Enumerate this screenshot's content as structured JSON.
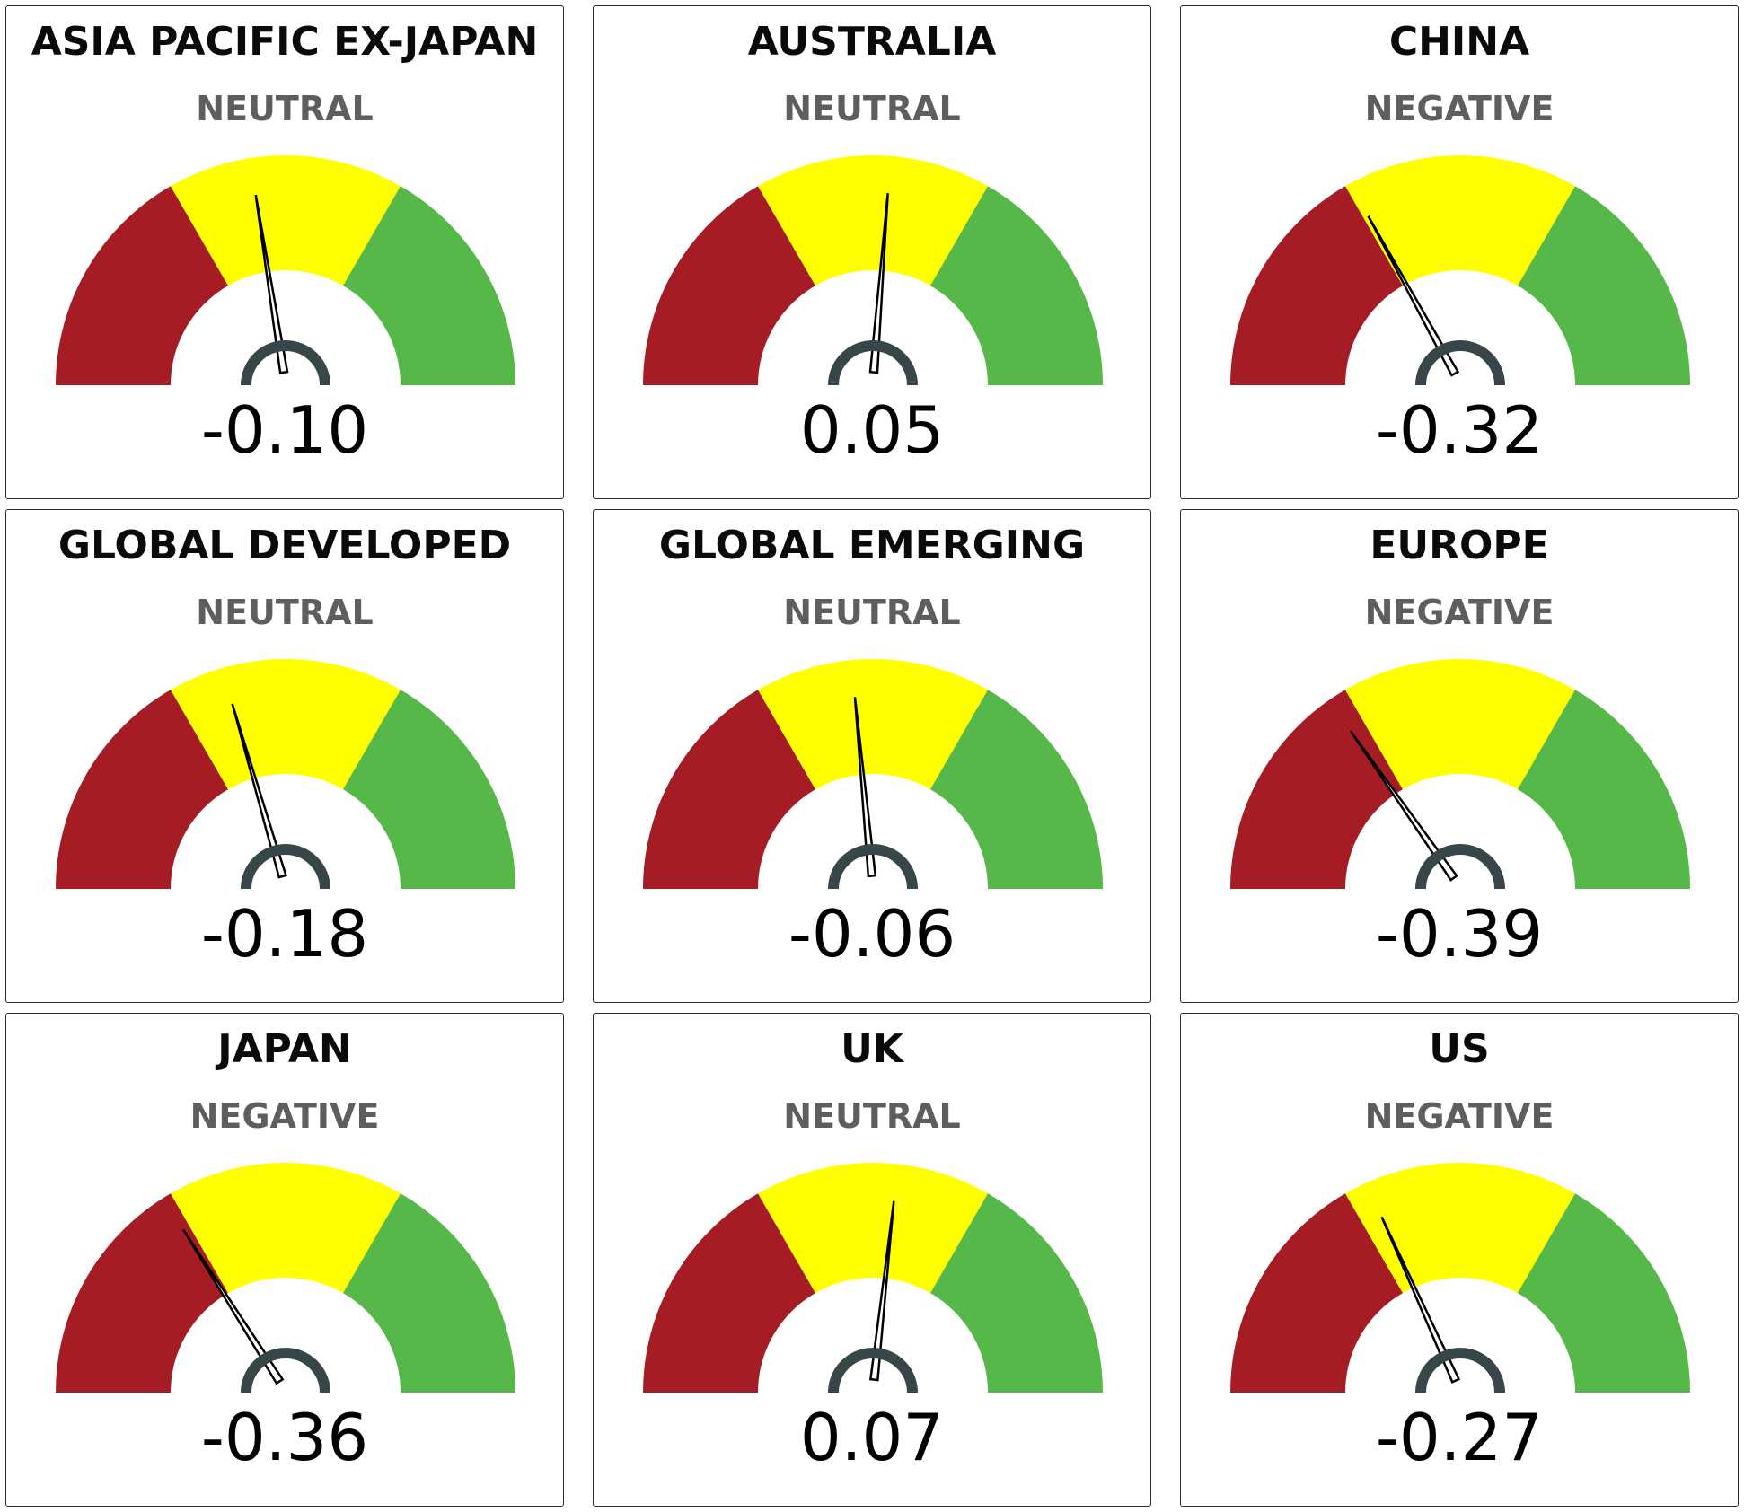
{
  "chart_data": [
    {
      "type": "gauge",
      "title": "ASIA PACIFIC EX-JAPAN",
      "sentiment": "NEUTRAL",
      "value": -0.1,
      "value_label": "-0.10",
      "range": [
        -1,
        1
      ]
    },
    {
      "type": "gauge",
      "title": "AUSTRALIA",
      "sentiment": "NEUTRAL",
      "value": 0.05,
      "value_label": "0.05",
      "range": [
        -1,
        1
      ]
    },
    {
      "type": "gauge",
      "title": "CHINA",
      "sentiment": "NEGATIVE",
      "value": -0.32,
      "value_label": "-0.32",
      "range": [
        -1,
        1
      ]
    },
    {
      "type": "gauge",
      "title": "GLOBAL DEVELOPED",
      "sentiment": "NEUTRAL",
      "value": -0.18,
      "value_label": "-0.18",
      "range": [
        -1,
        1
      ]
    },
    {
      "type": "gauge",
      "title": "GLOBAL EMERGING",
      "sentiment": "NEUTRAL",
      "value": -0.06,
      "value_label": "-0.06",
      "range": [
        -1,
        1
      ]
    },
    {
      "type": "gauge",
      "title": "EUROPE",
      "sentiment": "NEGATIVE",
      "value": -0.39,
      "value_label": "-0.39",
      "range": [
        -1,
        1
      ]
    },
    {
      "type": "gauge",
      "title": "JAPAN",
      "sentiment": "NEGATIVE",
      "value": -0.36,
      "value_label": "-0.36",
      "range": [
        -1,
        1
      ]
    },
    {
      "type": "gauge",
      "title": "UK",
      "sentiment": "NEUTRAL",
      "value": 0.07,
      "value_label": "0.07",
      "range": [
        -1,
        1
      ]
    },
    {
      "type": "gauge",
      "title": "US",
      "sentiment": "NEGATIVE",
      "value": -0.27,
      "value_label": "-0.27",
      "range": [
        -1,
        1
      ]
    }
  ],
  "colors": {
    "negative_band": "#a51c24",
    "neutral_band": "#ffff00",
    "positive_band": "#56b848",
    "needle": "#000000",
    "hub": "#374649",
    "sentiment_text": "#605e5c"
  }
}
